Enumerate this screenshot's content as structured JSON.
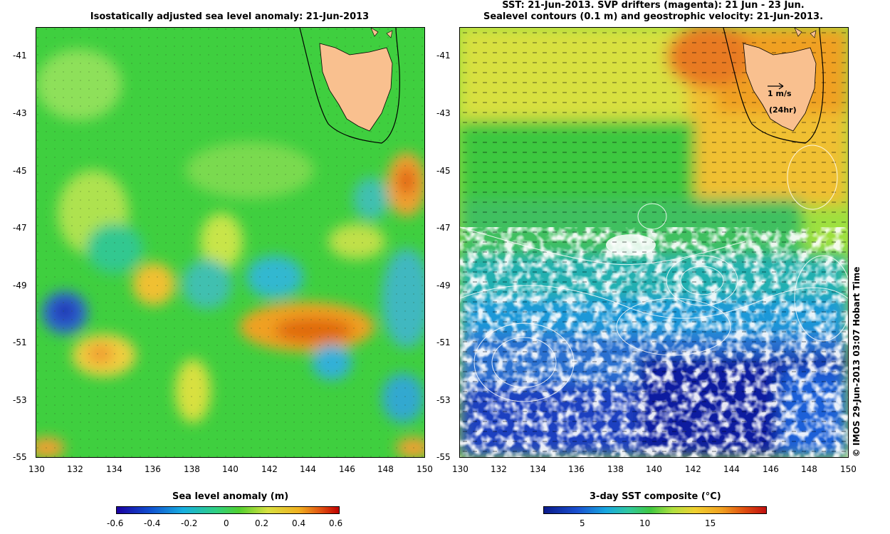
{
  "left_map": {
    "title": "Isostatically adjusted sea level anomaly: 21-Jun-2013",
    "y_ticks": [
      "-41",
      "-43",
      "-45",
      "-47",
      "-49",
      "-51",
      "-53",
      "-55"
    ],
    "x_ticks": [
      "130",
      "132",
      "134",
      "136",
      "138",
      "140",
      "142",
      "144",
      "146",
      "148",
      "150"
    ],
    "colorbar": {
      "title": "Sea level anomaly (m)",
      "ticks": [
        "-0.6",
        "-0.4",
        "-0.2",
        "0",
        "0.2",
        "0.4",
        "0.6"
      ]
    }
  },
  "right_map": {
    "title_line1": "SST: 21-Jun-2013. SVP drifters (magenta): 21 Jun - 23 Jun.",
    "title_line2": "Sealevel contours (0.1 m) and geostrophic velocity: 21-Jun-2013.",
    "y_ticks": [
      "-41",
      "-43",
      "-45",
      "-47",
      "-49",
      "-51",
      "-53",
      "-55"
    ],
    "x_ticks": [
      "130",
      "132",
      "134",
      "136",
      "138",
      "140",
      "142",
      "144",
      "146",
      "148",
      "150"
    ],
    "scale_line1": "1 m/s",
    "scale_line2": "(24hr)",
    "credit": "© IMOS 29-Jun-2013 03:07 Hobart Time",
    "colorbar": {
      "title": "3-day SST composite (°C)",
      "ticks": [
        "5",
        "10",
        "15"
      ]
    }
  },
  "colors": {
    "land": "#f9c08f",
    "cloud": "#ffffff",
    "ssh_low": "#1a00a0",
    "ssh_high": "#c00000",
    "sst_low": "#0a1a8a",
    "sst_high": "#c01010"
  }
}
